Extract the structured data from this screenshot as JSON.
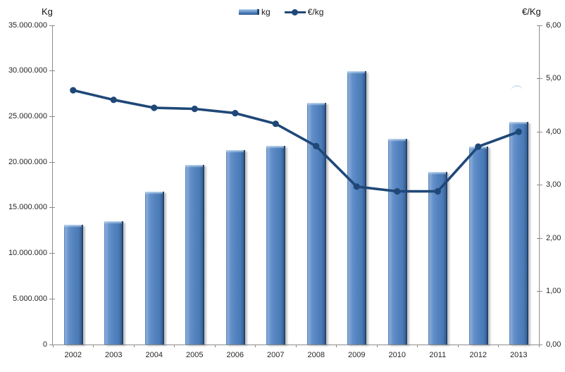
{
  "chart_data": {
    "type": "bar+line combo",
    "title": "",
    "categories": [
      "2002",
      "2003",
      "2004",
      "2005",
      "2006",
      "2007",
      "2008",
      "2009",
      "2010",
      "2011",
      "2012",
      "2013"
    ],
    "series": [
      {
        "name": "kg",
        "type": "bar",
        "axis": "left",
        "values": [
          13100000,
          13500000,
          16800000,
          19700000,
          21300000,
          21800000,
          26500000,
          30000000,
          22600000,
          18900000,
          21700000,
          24400000
        ]
      },
      {
        "name": "€/kg",
        "type": "line",
        "axis": "right",
        "values": [
          4.78,
          4.6,
          4.45,
          4.43,
          4.35,
          4.15,
          3.73,
          2.97,
          2.88,
          2.88,
          3.72,
          4.0
        ]
      }
    ],
    "left_axis": {
      "title": "Kg",
      "min": 0,
      "max": 35000000,
      "step": 5000000,
      "tick_labels": [
        "35.000.000",
        "30.000.000",
        "25.000.000",
        "20.000.000",
        "15.000.000",
        "10.000.000",
        "5.000.000",
        "0"
      ]
    },
    "right_axis": {
      "title": "€/Kg",
      "min": 0,
      "max": 6,
      "step": 1,
      "tick_labels": [
        "6,00",
        "5,00",
        "4,00",
        "3,00",
        "2,00",
        "1,00",
        "0,00"
      ]
    },
    "legend": {
      "position": "top-center",
      "items": [
        {
          "label": "kg",
          "marker": "bar-swatch"
        },
        {
          "label": "€/kg",
          "marker": "line-with-dot"
        }
      ]
    },
    "grid": "off",
    "colors": {
      "bar_fill": "#5082BE",
      "bar_highlight": "#C3D8EF",
      "bar_edge_dark": "#24456E",
      "line": "#1F4878",
      "axis": "#8C8C8C",
      "text": "#262626"
    }
  }
}
